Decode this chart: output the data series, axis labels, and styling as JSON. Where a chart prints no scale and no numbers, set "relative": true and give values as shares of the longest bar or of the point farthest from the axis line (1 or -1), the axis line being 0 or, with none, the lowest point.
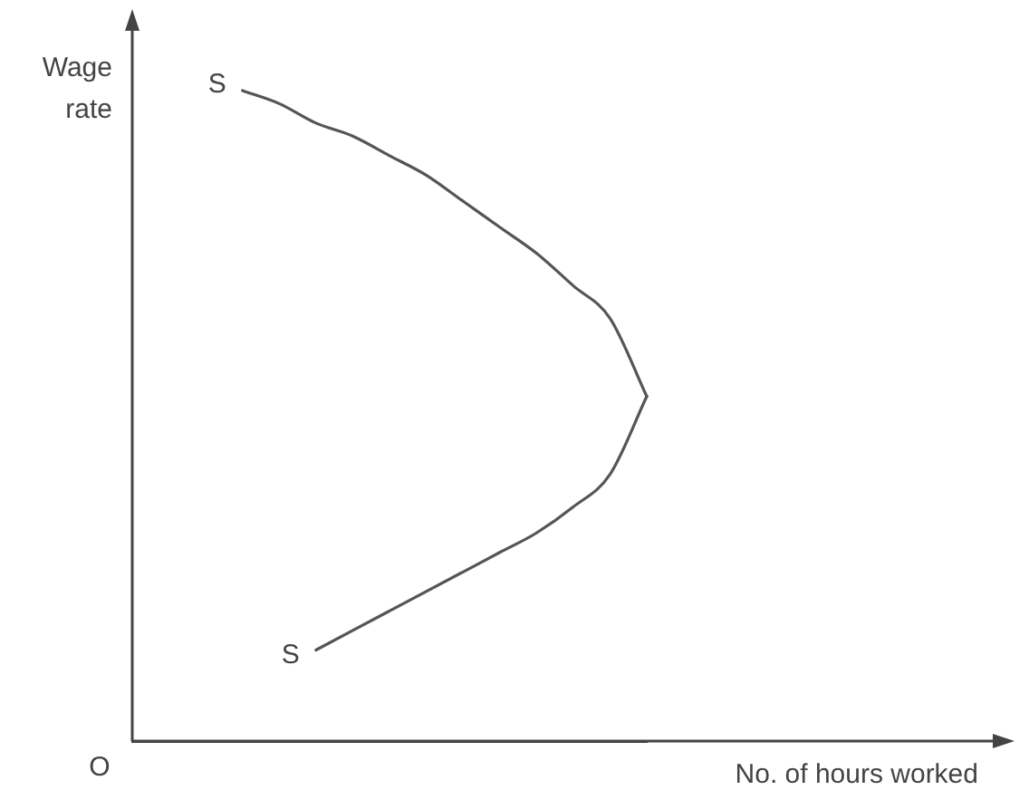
{
  "chart_data": {
    "type": "line",
    "relative": true,
    "xlabel": "No. of hours worked",
    "ylabel": "Wage rate",
    "annotations": [
      "O"
    ],
    "marker": "none",
    "line_style": "solid",
    "categories": [
      null,
      null,
      null,
      null,
      null,
      null,
      null,
      null,
      null,
      null,
      null,
      null,
      null,
      null,
      null
    ],
    "series": [
      {
        "name": "S",
        "color": "#555555",
        "values": [
          null,
          null,
          null,
          1.0,
          0.98,
          0.95,
          0.93,
          0.9,
          0.87,
          0.83,
          0.79,
          0.75,
          0.7,
          0.65,
          0.53
        ]
      },
      {
        "name": "S",
        "color": "#555555",
        "values": [
          null,
          null,
          null,
          null,
          null,
          0.14,
          0.17,
          0.2,
          0.23,
          0.26,
          0.29,
          0.32,
          0.36,
          0.41,
          0.53
        ]
      }
    ]
  }
}
